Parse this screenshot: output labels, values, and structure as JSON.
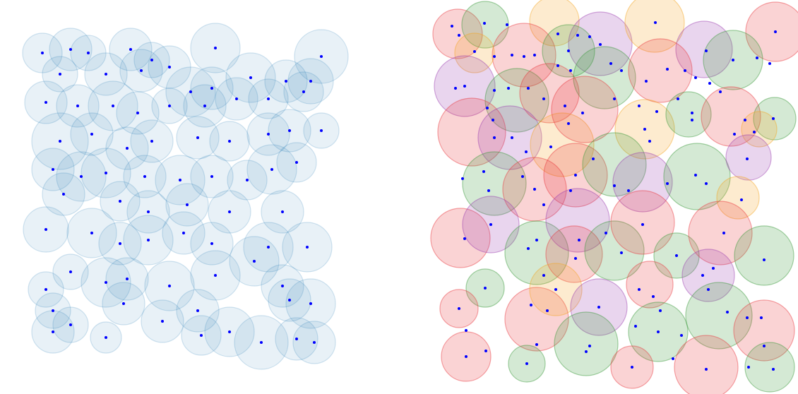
{
  "chart_data": [
    {
      "type": "scatter",
      "color": "#1f77b4",
      "point_color": "#0000ff",
      "xlim": [
        0,
        480
      ],
      "ylim": [
        520,
        0
      ],
      "x": [
        40,
        80,
        105,
        165,
        195,
        285,
        435,
        65,
        130,
        180,
        220,
        250,
        280,
        335,
        385,
        420,
        45,
        90,
        140,
        175,
        220,
        270,
        315,
        360,
        410,
        65,
        110,
        160,
        195,
        260,
        305,
        360,
        390,
        435,
        55,
        95,
        130,
        185,
        235,
        280,
        330,
        365,
        400,
        70,
        150,
        190,
        245,
        305,
        380,
        45,
        110,
        150,
        190,
        240,
        280,
        360,
        415,
        130,
        160,
        220,
        285,
        340,
        380,
        80,
        45,
        55,
        55,
        80,
        155,
        210,
        260,
        265,
        305,
        350,
        400,
        425,
        130,
        420,
        390
      ],
      "y": [
        55,
        50,
        55,
        50,
        65,
        48,
        60,
        85,
        85,
        80,
        75,
        110,
        105,
        90,
        95,
        95,
        125,
        130,
        130,
        140,
        130,
        130,
        120,
        120,
        110,
        180,
        170,
        190,
        180,
        175,
        180,
        170,
        165,
        165,
        220,
        230,
        225,
        230,
        235,
        230,
        235,
        220,
        210,
        255,
        265,
        280,
        270,
        280,
        280,
        305,
        310,
        325,
        320,
        310,
        325,
        330,
        330,
        380,
        375,
        385,
        370,
        350,
        385,
        365,
        390,
        420,
        450,
        440,
        410,
        435,
        420,
        455,
        450,
        465,
        460,
        465,
        458,
        410,
        405
      ],
      "r": [
        28,
        30,
        25,
        30,
        25,
        35,
        38,
        25,
        30,
        30,
        30,
        35,
        30,
        35,
        30,
        32,
        30,
        30,
        35,
        30,
        25,
        30,
        30,
        28,
        28,
        40,
        30,
        30,
        30,
        30,
        28,
        30,
        30,
        25,
        30,
        35,
        35,
        30,
        35,
        30,
        28,
        35,
        28,
        30,
        28,
        30,
        30,
        30,
        30,
        32,
        35,
        30,
        35,
        30,
        30,
        35,
        35,
        35,
        30,
        35,
        35,
        35,
        30,
        25,
        25,
        25,
        30,
        25,
        30,
        30,
        30,
        28,
        35,
        38,
        30,
        30,
        22,
        35,
        30
      ]
    },
    {
      "type": "scatter",
      "point_color": "#0000ff",
      "xlim": [
        0,
        515
      ],
      "ylim": [
        550,
        0
      ],
      "circles": {
        "x": [
          38,
          77,
          175,
          240,
          317,
          387,
          488,
          132,
          195,
          62,
          48,
          122,
          168,
          246,
          325,
          428,
          58,
          112,
          186,
          218,
          303,
          365,
          425,
          487,
          465,
          90,
          147,
          205,
          260,
          300,
          377,
          450,
          435,
          42,
          85,
          150,
          208,
          203,
          260,
          300,
          348,
          410,
          472,
          393,
          77,
          40,
          150,
          177,
          238,
          220,
          310,
          322,
          408,
          472,
          50,
          136,
          285,
          390,
          480
        ],
        "y": [
          48,
          35,
          30,
          62,
          32,
          70,
          45,
          78,
          72,
          75,
          122,
          142,
          132,
          110,
          100,
          85,
          187,
          195,
          205,
          155,
          183,
          162,
          165,
          168,
          183,
          260,
          268,
          248,
          233,
          258,
          250,
          223,
          280,
          337,
          318,
          358,
          312,
          360,
          355,
          315,
          362,
          330,
          362,
          390,
          408,
          437,
          452,
          410,
          435,
          487,
          403,
          470,
          447,
          468,
          505,
          515,
          520,
          520,
          520
        ],
        "r": [
          35,
          33,
          35,
          45,
          42,
          40,
          42,
          45,
          37,
          28,
          43,
          45,
          42,
          44,
          45,
          42,
          48,
          45,
          45,
          47,
          42,
          32,
          42,
          30,
          25,
          45,
          45,
          45,
          45,
          42,
          47,
          32,
          30,
          42,
          40,
          45,
          45,
          40,
          42,
          45,
          32,
          45,
          42,
          37,
          27,
          27,
          45,
          37,
          40,
          45,
          33,
          42,
          47,
          43,
          35,
          26,
          30,
          45,
          35
        ],
        "colors": [
          "#e8383d",
          "#3a9a3a",
          "#f5a623",
          "#9b3fb0",
          "#f5a623",
          "#9b3fb0",
          "#e8383d",
          "#e8383d",
          "#3a9a3a",
          "#f5a623",
          "#9b3fb0",
          "#3a9a3a",
          "#e8383d",
          "#3a9a3a",
          "#e8383d",
          "#3a9a3a",
          "#e8383d",
          "#9b3fb0",
          "#f5a623",
          "#e8383d",
          "#f5a623",
          "#3a9a3a",
          "#e8383d",
          "#3a9a3a",
          "#f5a623",
          "#3a9a3a",
          "#e8383d",
          "#e8383d",
          "#3a9a3a",
          "#9b3fb0",
          "#3a9a3a",
          "#9b3fb0",
          "#f5a623",
          "#e8383d",
          "#9b3fb0",
          "#3a9a3a",
          "#9b3fb0",
          "#e8383d",
          "#3a9a3a",
          "#e8383d",
          "#3a9a3a",
          "#e8383d",
          "#3a9a3a",
          "#9b3fb0",
          "#3a9a3a",
          "#e8383d",
          "#e8383d",
          "#f5a623",
          "#9b3fb0",
          "#3a9a3a",
          "#e8383d",
          "#3a9a3a",
          "#3a9a3a",
          "#e8383d",
          "#e8383d",
          "#3a9a3a",
          "#e8383d",
          "#e8383d",
          "#3a9a3a"
        ]
      },
      "x": [
        30,
        40,
        76,
        108,
        318,
        488,
        62,
        90,
        115,
        132,
        147,
        180,
        195,
        208,
        225,
        240,
        180,
        198,
        270,
        255,
        305,
        335,
        360,
        375,
        390,
        428,
        462,
        480,
        35,
        48,
        90,
        110,
        138,
        160,
        190,
        215,
        260,
        295,
        320,
        350,
        370,
        395,
        410,
        445,
        458,
        485,
        88,
        80,
        90,
        115,
        135,
        170,
        195,
        303,
        310,
        370,
        430,
        448,
        45,
        75,
        82,
        130,
        147,
        160,
        198,
        205,
        230,
        260,
        280,
        335,
        375,
        390,
        440,
        48,
        85,
        138,
        150,
        160,
        210,
        205,
        248,
        270,
        300,
        348,
        385,
        400,
        415,
        472,
        77,
        40,
        50,
        142,
        165,
        177,
        238,
        295,
        315,
        325,
        393,
        420,
        468,
        448,
        150,
        225,
        220,
        290,
        322,
        355,
        50,
        78,
        136,
        285,
        343,
        390,
        450,
        485,
        472
      ],
      "y": [
        37,
        50,
        33,
        35,
        32,
        45,
        73,
        80,
        78,
        80,
        78,
        48,
        72,
        50,
        52,
        63,
        93,
        100,
        100,
        90,
        115,
        98,
        100,
        110,
        72,
        85,
        82,
        90,
        125,
        122,
        128,
        125,
        125,
        140,
        150,
        160,
        140,
        150,
        158,
        140,
        170,
        118,
        130,
        170,
        187,
        168,
        170,
        153,
        195,
        195,
        215,
        208,
        175,
        183,
        200,
        160,
        190,
        225,
        253,
        243,
        270,
        250,
        268,
        290,
        270,
        248,
        225,
        263,
        270,
        260,
        248,
        260,
        283,
        338,
        318,
        352,
        340,
        390,
        340,
        366,
        330,
        358,
        318,
        362,
        390,
        380,
        330,
        368,
        408,
        437,
        468,
        432,
        440,
        410,
        435,
        410,
        420,
        440,
        410,
        442,
        450,
        450,
        488,
        490,
        498,
        462,
        470,
        475,
        505,
        497,
        515,
        520,
        508,
        523,
        520,
        523,
        490
      ]
    }
  ]
}
